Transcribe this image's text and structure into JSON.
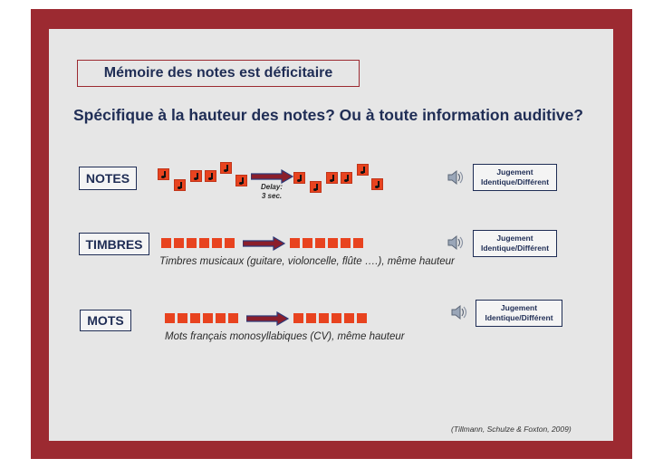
{
  "title": "Mémoire des notes est déficitaire",
  "subtitle": "Spécifique à la hauteur des notes? Ou à toute information auditive?",
  "rows": [
    {
      "label": "NOTES",
      "delay_line1": "Delay:",
      "delay_line2": "3 sec.",
      "judge_line1": "Jugement",
      "judge_line2": "Identique/Différent"
    },
    {
      "label": "TIMBRES",
      "caption": "Timbres musicaux (guitare, violoncelle, flûte ….), même hauteur",
      "judge_line1": "Jugement",
      "judge_line2": "Identique/Différent"
    },
    {
      "label": "MOTS",
      "caption": "Mots français monosyllabiques (CV), même hauteur",
      "judge_line1": "Jugement",
      "judge_line2": "Identique/Différent"
    }
  ],
  "reference": "(Tillmann, Schulze & Foxton, 2009)",
  "colors": {
    "frame": "#9c2a31",
    "background": "#e6e6e6",
    "text_dark_blue": "#1f2d55",
    "stimulus_orange": "#e8431f",
    "arrow_fill": "#8b1e2b",
    "arrow_outline": "#2d3a78"
  },
  "icons": [
    "speaker-icon",
    "music-note-icon",
    "arrow-right-icon"
  ]
}
